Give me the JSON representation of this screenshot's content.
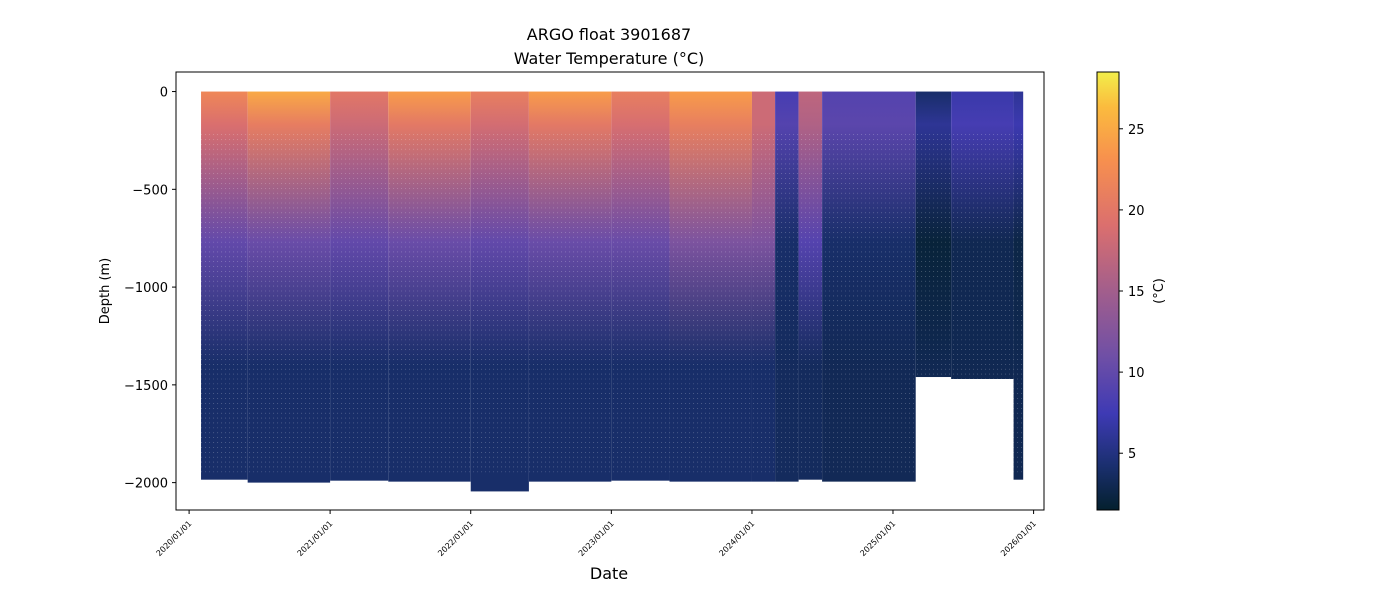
{
  "chart_data": {
    "type": "scatter",
    "title": "ARGO float 3901687",
    "subtitle": "Water Temperature (°C)",
    "xlabel": "Date",
    "ylabel": "Depth (m)",
    "colorbar_label": "(°C)",
    "colormap": "thermal",
    "xlim": [
      "2019-11-28",
      "2026-01-28"
    ],
    "ylim": [
      -2140,
      100
    ],
    "xticks": [
      "2020/01/01",
      "2021/01/01",
      "2022/01/01",
      "2023/01/01",
      "2024/01/01",
      "2025/01/01",
      "2026/01/01"
    ],
    "yticks": [
      0,
      -500,
      -1000,
      -1500,
      -2000
    ],
    "colorbar_range": [
      1.5,
      28.5
    ],
    "colorbar_ticks": [
      5,
      10,
      15,
      20,
      25
    ],
    "grid": false,
    "segments": [
      {
        "start": "2020-02-01",
        "end": "2020-06-01",
        "max_depth": 1985,
        "surface_temp": 22,
        "mid_temp": 12,
        "deep_temp": 4
      },
      {
        "start": "2020-06-01",
        "end": "2021-01-01",
        "max_depth": 2000,
        "surface_temp": 25,
        "mid_temp": 12.5,
        "deep_temp": 4
      },
      {
        "start": "2021-01-01",
        "end": "2021-06-01",
        "max_depth": 1990,
        "surface_temp": 20,
        "mid_temp": 12,
        "deep_temp": 4
      },
      {
        "start": "2021-06-01",
        "end": "2022-01-01",
        "max_depth": 1995,
        "surface_temp": 24,
        "mid_temp": 12.5,
        "deep_temp": 4
      },
      {
        "start": "2022-01-01",
        "end": "2022-06-01",
        "max_depth": 2045,
        "surface_temp": 21,
        "mid_temp": 12,
        "deep_temp": 4
      },
      {
        "start": "2022-06-01",
        "end": "2023-01-01",
        "max_depth": 1995,
        "surface_temp": 24,
        "mid_temp": 12.5,
        "deep_temp": 4
      },
      {
        "start": "2023-01-01",
        "end": "2023-06-01",
        "max_depth": 1990,
        "surface_temp": 21,
        "mid_temp": 12.5,
        "deep_temp": 4
      },
      {
        "start": "2023-06-01",
        "end": "2024-01-01",
        "max_depth": 1995,
        "surface_temp": 24,
        "mid_temp": 14,
        "deep_temp": 4
      },
      {
        "start": "2024-01-01",
        "end": "2024-03-01",
        "max_depth": 1995,
        "surface_temp": 18,
        "mid_temp": 14,
        "deep_temp": 4
      },
      {
        "start": "2024-03-01",
        "end": "2024-05-01",
        "max_depth": 1995,
        "surface_temp": 8,
        "mid_temp": 6,
        "deep_temp": 3.5
      },
      {
        "start": "2024-05-01",
        "end": "2024-07-01",
        "max_depth": 1985,
        "surface_temp": 17,
        "mid_temp": 11,
        "deep_temp": 3.5
      },
      {
        "start": "2024-07-01",
        "end": "2025-03-01",
        "max_depth": 1995,
        "surface_temp": 9,
        "mid_temp": 6,
        "deep_temp": 3.2
      },
      {
        "start": "2025-03-01",
        "end": "2025-06-01",
        "max_depth": 1460,
        "surface_temp": 4,
        "mid_temp": 4,
        "deep_temp": 3
      },
      {
        "start": "2025-06-01",
        "end": "2025-11-10",
        "max_depth": 1470,
        "surface_temp": 7,
        "mid_temp": 5,
        "deep_temp": 3
      },
      {
        "start": "2025-11-10",
        "end": "2025-12-05",
        "max_depth": 1985,
        "surface_temp": 6,
        "mid_temp": 4.5,
        "deep_temp": 3
      }
    ]
  }
}
